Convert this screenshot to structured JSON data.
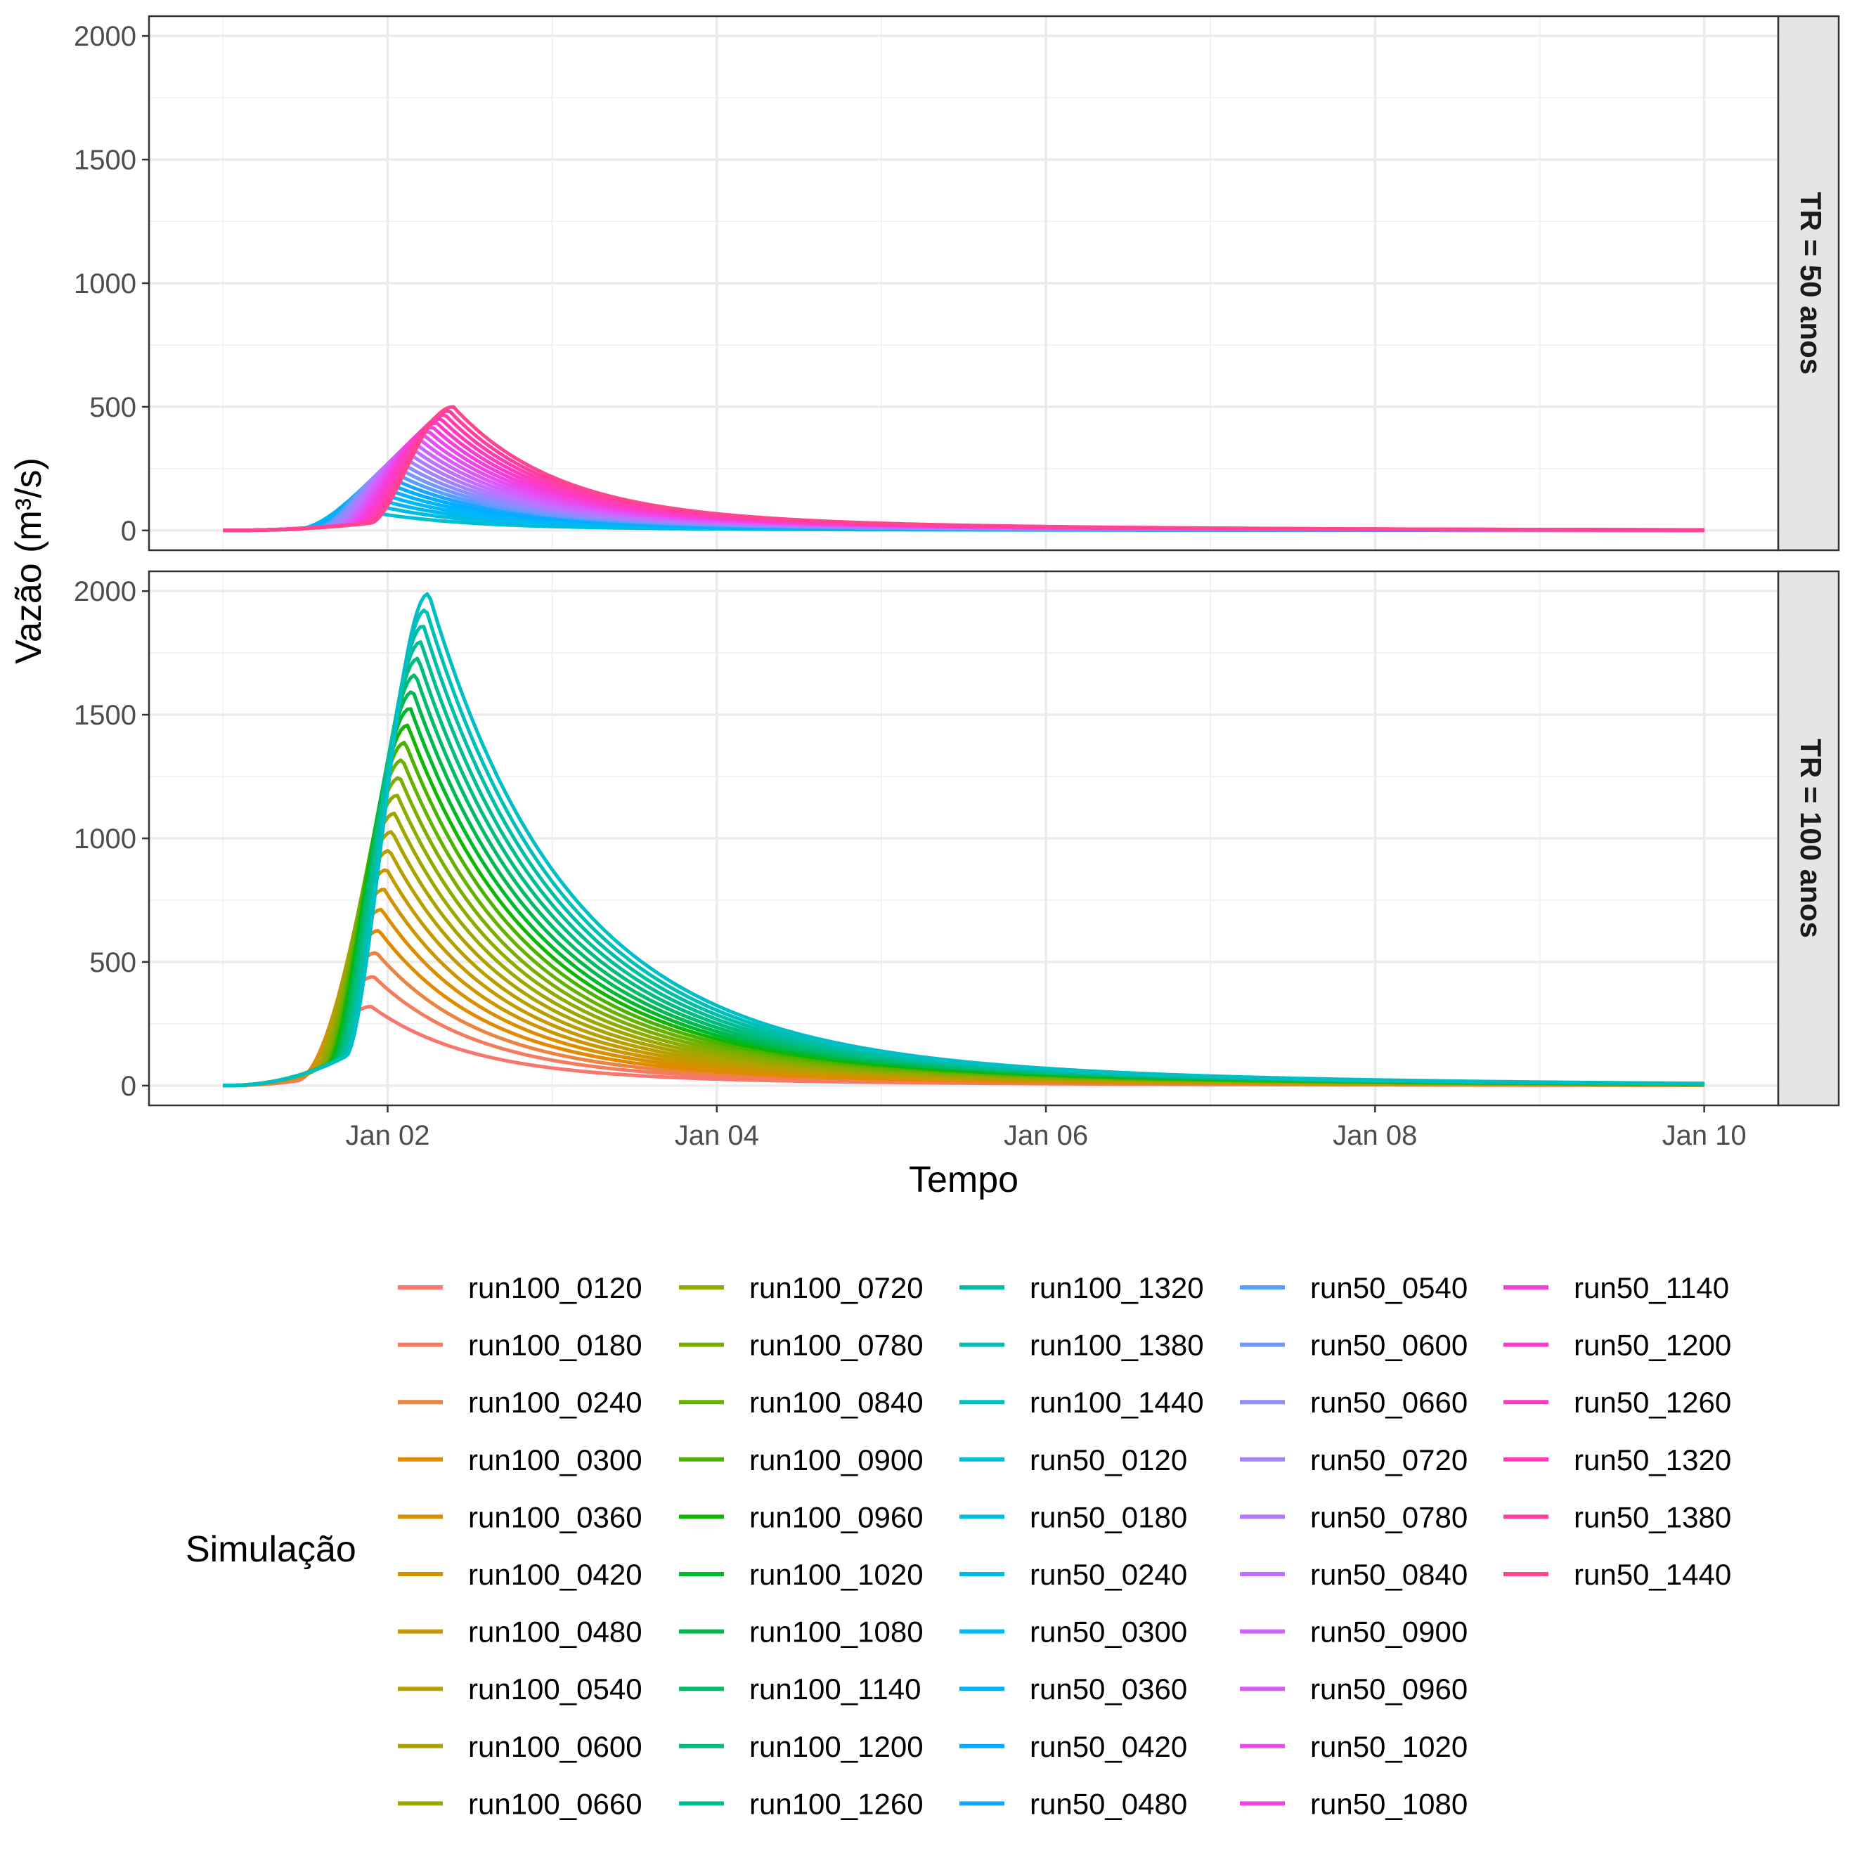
{
  "chart_data": {
    "type": "line",
    "xlabel": "Tempo",
    "ylabel": "Vazão (m³/s)",
    "legend_title": "Simulação",
    "legend_placement": "bottom",
    "x_ticks": [
      "Jan 02",
      "Jan 04",
      "Jan 06",
      "Jan 08",
      "Jan 10"
    ],
    "x_tick_days": [
      2,
      4,
      6,
      8,
      10
    ],
    "xlim_days": [
      0.55,
      10.45
    ],
    "ylim": [
      -80,
      2080
    ],
    "y_ticks": [
      0,
      500,
      1000,
      1500,
      2000
    ],
    "grid": true,
    "facets": [
      {
        "strip": "TR = 50 anos",
        "series_group": "run50",
        "peak_min": 80,
        "peak_max": 500,
        "rise_start_early": 1.45,
        "rise_start_late": 1.9,
        "peak_time_early": 1.85,
        "peak_time_late": 2.4,
        "note_values": "approximate, estimated from gridlines"
      },
      {
        "strip": "TR = 100 anos",
        "series_group": "run100",
        "peak_min": 320,
        "peak_max": 1990,
        "rise_start_early": 1.45,
        "rise_start_late": 1.75,
        "peak_time_early": 1.9,
        "peak_time_late": 2.25,
        "note_values": "approximate, estimated from gridlines"
      }
    ],
    "series": [
      {
        "name": "run100_0120",
        "color": "#F8766D"
      },
      {
        "name": "run100_0180",
        "color": "#F47C5E"
      },
      {
        "name": "run100_0240",
        "color": "#EC8341"
      },
      {
        "name": "run100_0300",
        "color": "#E38900"
      },
      {
        "name": "run100_0360",
        "color": "#D98F00"
      },
      {
        "name": "run100_0420",
        "color": "#CF9500"
      },
      {
        "name": "run100_0480",
        "color": "#C49A00"
      },
      {
        "name": "run100_0540",
        "color": "#B89F00"
      },
      {
        "name": "run100_0600",
        "color": "#ABA300"
      },
      {
        "name": "run100_0660",
        "color": "#9DA700"
      },
      {
        "name": "run100_0720",
        "color": "#8EAB00"
      },
      {
        "name": "run100_0780",
        "color": "#7CAE00"
      },
      {
        "name": "run100_0840",
        "color": "#67B100"
      },
      {
        "name": "run100_0900",
        "color": "#4BB300"
      },
      {
        "name": "run100_0960",
        "color": "#10B600"
      },
      {
        "name": "run100_1020",
        "color": "#00B82B"
      },
      {
        "name": "run100_1080",
        "color": "#00B94E"
      },
      {
        "name": "run100_1140",
        "color": "#00BB67"
      },
      {
        "name": "run100_1200",
        "color": "#00BC7D"
      },
      {
        "name": "run100_1260",
        "color": "#00BE91"
      },
      {
        "name": "run100_1320",
        "color": "#00BEA3"
      },
      {
        "name": "run100_1380",
        "color": "#00BFB4"
      },
      {
        "name": "run100_1440",
        "color": "#00BFC4"
      },
      {
        "name": "run50_0120",
        "color": "#00BED3"
      },
      {
        "name": "run50_0180",
        "color": "#00BCE1"
      },
      {
        "name": "run50_0240",
        "color": "#00BAEE"
      },
      {
        "name": "run50_0300",
        "color": "#00B7F9"
      },
      {
        "name": "run50_0360",
        "color": "#00B3FF"
      },
      {
        "name": "run50_0420",
        "color": "#00ADFF"
      },
      {
        "name": "run50_0480",
        "color": "#1AA6FF"
      },
      {
        "name": "run50_0540",
        "color": "#549FFF"
      },
      {
        "name": "run50_0600",
        "color": "#7596FF"
      },
      {
        "name": "run50_0660",
        "color": "#8E8DFF"
      },
      {
        "name": "run50_0720",
        "color": "#A283FF"
      },
      {
        "name": "run50_0780",
        "color": "#B379FF"
      },
      {
        "name": "run50_0840",
        "color": "#C26EFF"
      },
      {
        "name": "run50_0900",
        "color": "#CF63FF"
      },
      {
        "name": "run50_0960",
        "color": "#DB58FA"
      },
      {
        "name": "run50_1020",
        "color": "#E54EF1"
      },
      {
        "name": "run50_1080",
        "color": "#EE46E6"
      },
      {
        "name": "run50_1140",
        "color": "#F53FDA"
      },
      {
        "name": "run50_1200",
        "color": "#FA3CCD"
      },
      {
        "name": "run50_1260",
        "color": "#FD3BBF"
      },
      {
        "name": "run50_1320",
        "color": "#FF3CB0"
      },
      {
        "name": "run50_1380",
        "color": "#FF3FA0"
      },
      {
        "name": "run50_1440",
        "color": "#FF4590"
      }
    ]
  }
}
